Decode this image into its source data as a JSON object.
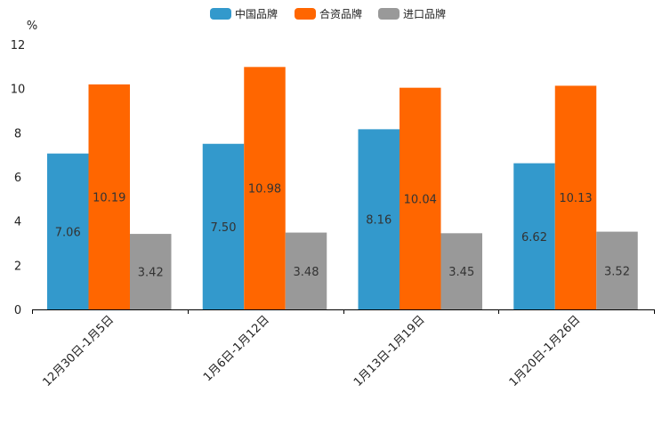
{
  "chart_data": {
    "type": "bar",
    "title": "",
    "ylabel": "%",
    "xlabel": "",
    "ylim": [
      0,
      12
    ],
    "yticks": [
      "0",
      "2",
      "4",
      "6",
      "8",
      "10",
      "12"
    ],
    "categories": [
      "12月30日-1月5日",
      "1月6日-1月12日",
      "1月13日-1月19日",
      "1月20日-1月26日"
    ],
    "series": [
      {
        "name": "中国品牌",
        "color": "#3399cc",
        "values": [
          7.06,
          7.5,
          8.16,
          6.62
        ],
        "labels": [
          "7.06",
          "7.50",
          "8.16",
          "6.62"
        ]
      },
      {
        "name": "合资品牌",
        "color": "#ff6600",
        "values": [
          10.19,
          10.98,
          10.04,
          10.13
        ],
        "labels": [
          "10.19",
          "10.98",
          "10.04",
          "10.13"
        ]
      },
      {
        "name": "进口品牌",
        "color": "#999999",
        "values": [
          3.42,
          3.48,
          3.45,
          3.52
        ],
        "labels": [
          "3.42",
          "3.48",
          "3.45",
          "3.52"
        ]
      }
    ],
    "legend": "top-center",
    "grid": false
  }
}
